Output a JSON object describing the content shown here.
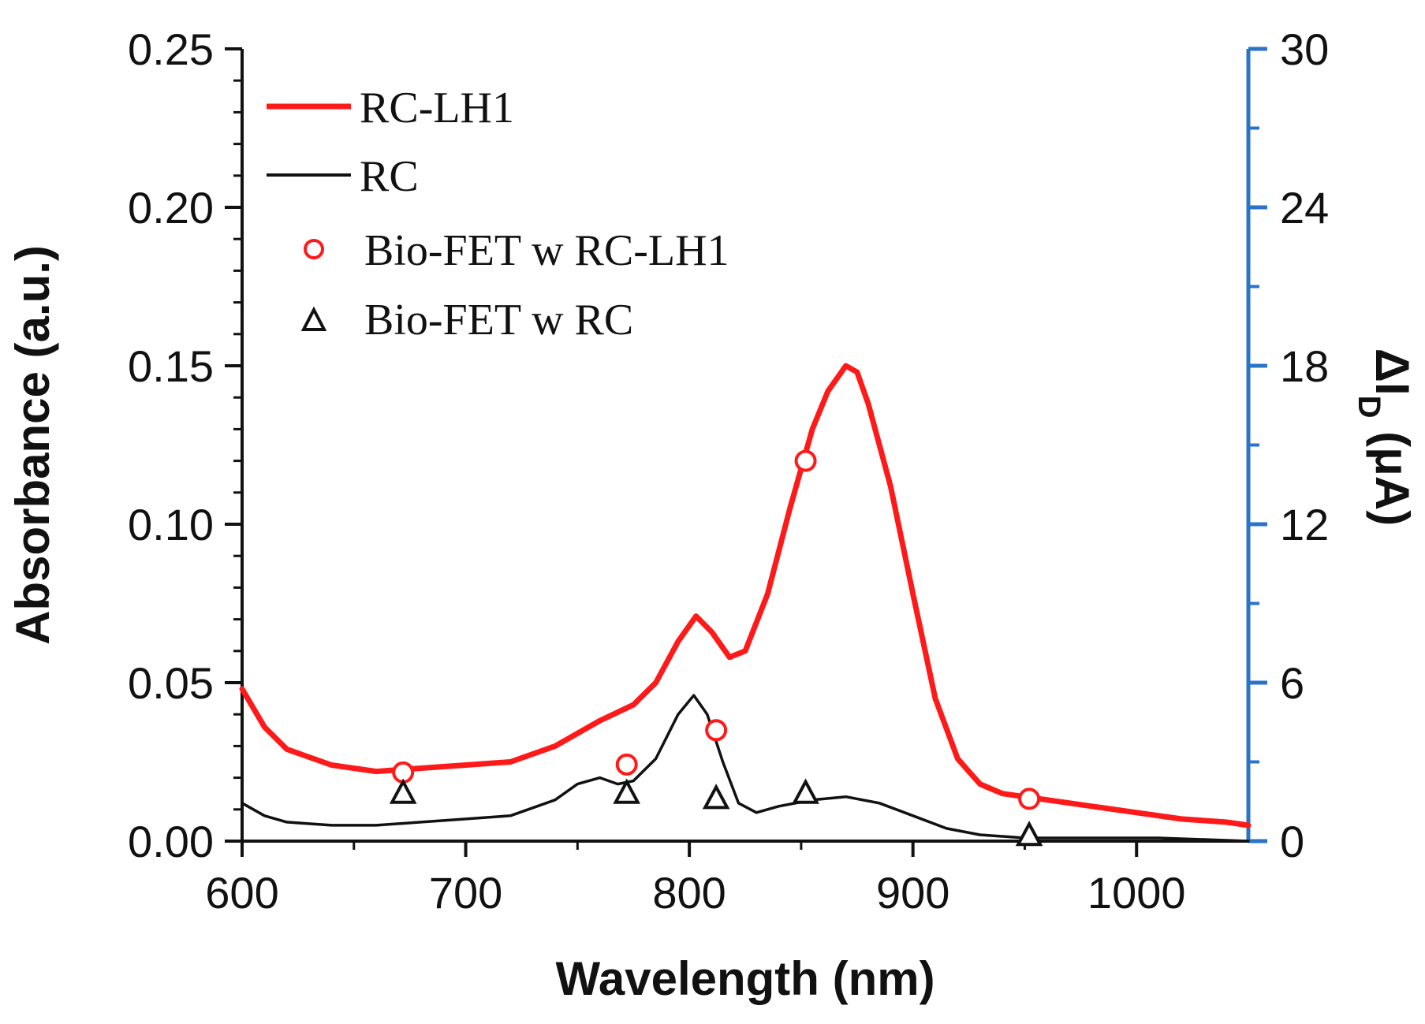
{
  "chart_data": {
    "type": "line",
    "title": "",
    "xlabel": "Wavelength (nm)",
    "ylabel_left": "Absorbance (a.u.)",
    "ylabel_right_main": "ΔI",
    "ylabel_right_sub": "D",
    "ylabel_right_unit": " (μA)",
    "xlim": [
      600,
      1050
    ],
    "ylim_left": [
      0,
      0.25
    ],
    "ylim_right": [
      0,
      30
    ],
    "x_ticks": [
      600,
      700,
      800,
      900,
      1000
    ],
    "x_tick_labels": [
      "600",
      "700",
      "800",
      "900",
      "1000"
    ],
    "y_left_ticks": [
      0,
      0.05,
      0.1,
      0.15,
      0.2,
      0.25
    ],
    "y_left_tick_labels": [
      "0.00",
      "0.05",
      "0.10",
      "0.15",
      "0.20",
      "0.25"
    ],
    "y_right_ticks": [
      0,
      6,
      12,
      18,
      24,
      30
    ],
    "y_right_tick_labels": [
      "0",
      "6",
      "12",
      "18",
      "24",
      "30"
    ],
    "colors": {
      "rc_lh1": "#ff1a1a",
      "rc": "#111111",
      "right_axis": "#2a73c8"
    },
    "legend_position": "top-left",
    "series": [
      {
        "name": "RC-LH1",
        "axis": "left",
        "style": "line",
        "color": "#ff1a1a",
        "x": [
          600,
          610,
          620,
          640,
          660,
          680,
          700,
          720,
          740,
          760,
          775,
          785,
          795,
          803,
          810,
          818,
          825,
          835,
          845,
          855,
          862,
          870,
          875,
          880,
          890,
          900,
          910,
          920,
          930,
          940,
          960,
          980,
          1000,
          1020,
          1040,
          1050
        ],
        "y": [
          0.048,
          0.036,
          0.029,
          0.024,
          0.022,
          0.023,
          0.024,
          0.025,
          0.03,
          0.038,
          0.043,
          0.05,
          0.063,
          0.071,
          0.066,
          0.058,
          0.06,
          0.078,
          0.105,
          0.13,
          0.142,
          0.15,
          0.148,
          0.138,
          0.112,
          0.078,
          0.045,
          0.026,
          0.018,
          0.015,
          0.013,
          0.011,
          0.009,
          0.007,
          0.006,
          0.005
        ]
      },
      {
        "name": "RC",
        "axis": "left",
        "style": "line",
        "color": "#111111",
        "x": [
          600,
          610,
          620,
          640,
          660,
          680,
          700,
          720,
          740,
          750,
          760,
          768,
          775,
          785,
          795,
          802,
          808,
          815,
          822,
          830,
          840,
          855,
          870,
          885,
          900,
          915,
          930,
          950,
          980,
          1010,
          1050
        ],
        "y": [
          0.012,
          0.008,
          0.006,
          0.005,
          0.005,
          0.006,
          0.007,
          0.008,
          0.013,
          0.018,
          0.02,
          0.018,
          0.019,
          0.026,
          0.04,
          0.046,
          0.04,
          0.025,
          0.012,
          0.009,
          0.011,
          0.013,
          0.014,
          0.012,
          0.008,
          0.004,
          0.002,
          0.001,
          0.001,
          0.001,
          0.0
        ]
      },
      {
        "name": "Bio-FET w RC-LH1",
        "axis": "right",
        "style": "marker-circle",
        "color": "#ff1a1a",
        "x": [
          672,
          772,
          812,
          852,
          952
        ],
        "y": [
          2.6,
          2.9,
          4.2,
          14.4,
          1.6
        ]
      },
      {
        "name": "Bio-FET w RC",
        "axis": "right",
        "style": "marker-triangle",
        "color": "#111111",
        "x": [
          672,
          772,
          812,
          852,
          952
        ],
        "y": [
          1.8,
          1.8,
          1.6,
          1.8,
          0.2
        ]
      }
    ]
  }
}
